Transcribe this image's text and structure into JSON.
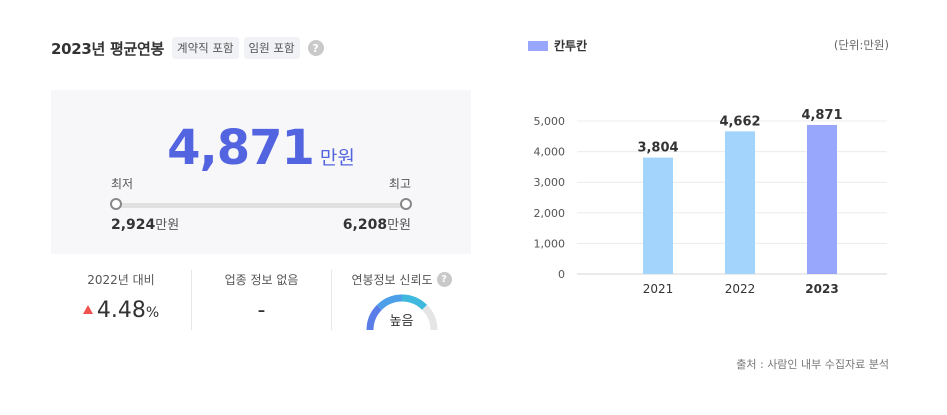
{
  "header": {
    "title": "2023년 평균연봉",
    "tags": [
      "계약직 포함",
      "임원 포함"
    ],
    "help_icon": "?"
  },
  "salary": {
    "average": "4,871",
    "unit": "만원",
    "min_label": "최저",
    "max_label": "최고",
    "min_value": "2,924",
    "max_value": "6,208"
  },
  "stats": {
    "change_label": "2022년 대비",
    "change_value": "4.48",
    "change_unit": "%",
    "change_direction": "up",
    "industry_label": "업종 정보 없음",
    "industry_value": "-",
    "reliability_label": "연봉정보 신뢰도",
    "reliability_value": "높음"
  },
  "chart": {
    "legend": "칸투칸",
    "unit_note": "(단위:만원)",
    "source": "출처 : 사람인 내부 수집자료 분석"
  },
  "chart_data": {
    "type": "bar",
    "categories": [
      "2021",
      "2022",
      "2023"
    ],
    "values": [
      3804,
      4662,
      4871
    ],
    "value_labels": [
      "3,804",
      "4,662",
      "4,871"
    ],
    "highlight_index": 2,
    "yticks": [
      "0",
      "1,000",
      "2,000",
      "3,000",
      "4,000",
      "5,000"
    ],
    "ylim": [
      0,
      5000
    ],
    "colors": {
      "normal": "#a3d4fb",
      "highlight": "#98a6fb",
      "grid": "#ececec"
    }
  },
  "colors": {
    "accent": "#5264e0",
    "increase": "#ef5350"
  }
}
